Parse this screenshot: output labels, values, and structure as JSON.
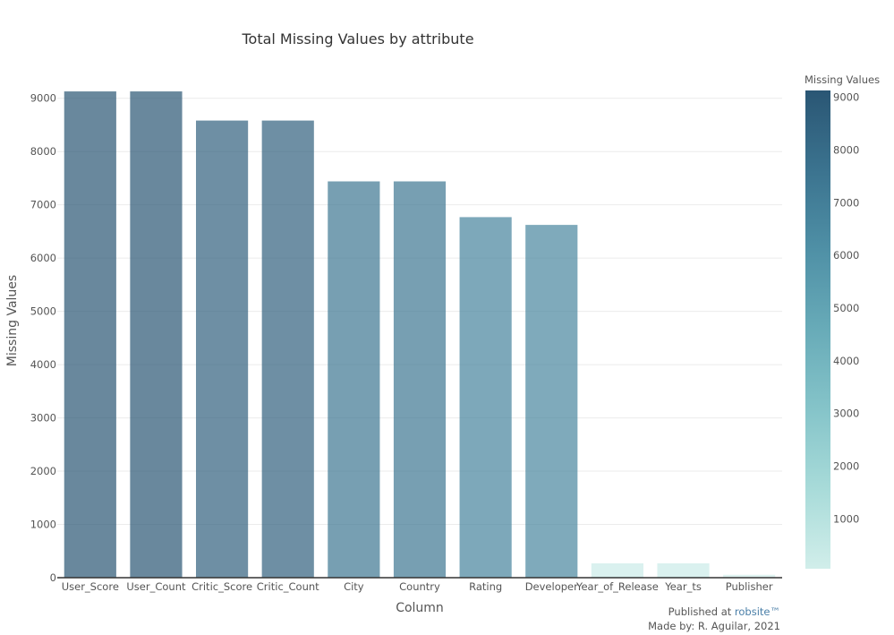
{
  "chart_data": {
    "type": "bar",
    "title": "Total Missing Values by attribute",
    "xlabel": "Column",
    "ylabel": "Missing Values",
    "categories": [
      "User_Score",
      "User_Count",
      "Critic_Score",
      "Critic_Count",
      "City",
      "Country",
      "Rating",
      "Developer",
      "Year_of_Release",
      "Year_ts",
      "Publisher"
    ],
    "values": [
      9129,
      9129,
      8582,
      8582,
      7440,
      7440,
      6769,
      6623,
      269,
      269,
      54
    ],
    "ylim": [
      0,
      9500
    ],
    "yticks": [
      0,
      1000,
      2000,
      3000,
      4000,
      5000,
      6000,
      7000,
      8000,
      9000
    ],
    "grid": true,
    "colorbar": {
      "title": "Missing Values",
      "range": [
        54,
        9129
      ],
      "ticks": [
        1000,
        2000,
        3000,
        4000,
        5000,
        6000,
        7000,
        8000,
        9000
      ],
      "colors": [
        "#d1eeea",
        "#a8dbd9",
        "#85c4c9",
        "#68abb8",
        "#4f90a6",
        "#3b738f",
        "#2a5674"
      ]
    }
  },
  "footer": {
    "published_prefix": "Published at ",
    "published_link": "robsite™",
    "made_by": "Made by: R. Aguilar, 2021"
  }
}
